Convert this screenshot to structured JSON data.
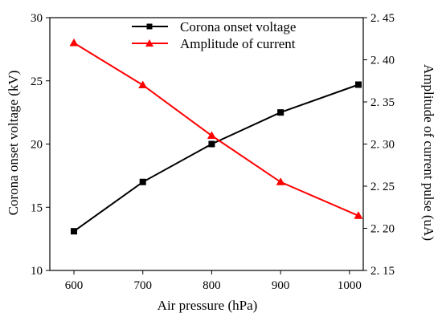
{
  "chart_data": {
    "type": "line",
    "x": [
      600,
      700,
      800,
      900,
      1013
    ],
    "xlabel": "Air pressure (hPa)",
    "xticks": [
      600,
      700,
      800,
      900,
      1000
    ],
    "xlim": [
      565,
      1020
    ],
    "y_left": {
      "label": "Corona onset voltage (kV)",
      "lim": [
        10,
        30
      ],
      "ticks": [
        10,
        15,
        20,
        25,
        30
      ]
    },
    "y_right": {
      "label": "Amplitude of current pulse (uA)",
      "lim": [
        2.15,
        2.45
      ],
      "ticks": [
        2.15,
        2.2,
        2.25,
        2.3,
        2.35,
        2.4,
        2.45
      ],
      "tick_labels": [
        "2. 15",
        "2. 20",
        "2. 25",
        "2. 30",
        "2. 35",
        "2. 40",
        "2. 45"
      ]
    },
    "series": [
      {
        "name": "Corona onset voltage",
        "axis": "left",
        "color": "#000000",
        "marker": "square",
        "values": [
          13.1,
          17.0,
          20.0,
          22.5,
          24.7
        ]
      },
      {
        "name": "Amplitude of current",
        "axis": "right",
        "color": "#ff0000",
        "marker": "triangle",
        "values": [
          2.42,
          2.37,
          2.31,
          2.255,
          2.215
        ]
      }
    ],
    "legend_position": "top-center",
    "grid": false
  }
}
